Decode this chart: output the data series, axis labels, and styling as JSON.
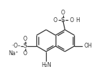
{
  "bg_color": "#ffffff",
  "line_color": "#303030",
  "text_color": "#303030",
  "lw": 0.9,
  "figsize": [
    1.5,
    1.19
  ],
  "dpi": 100,
  "xlim": [
    0,
    150
  ],
  "ylim": [
    0,
    119
  ]
}
